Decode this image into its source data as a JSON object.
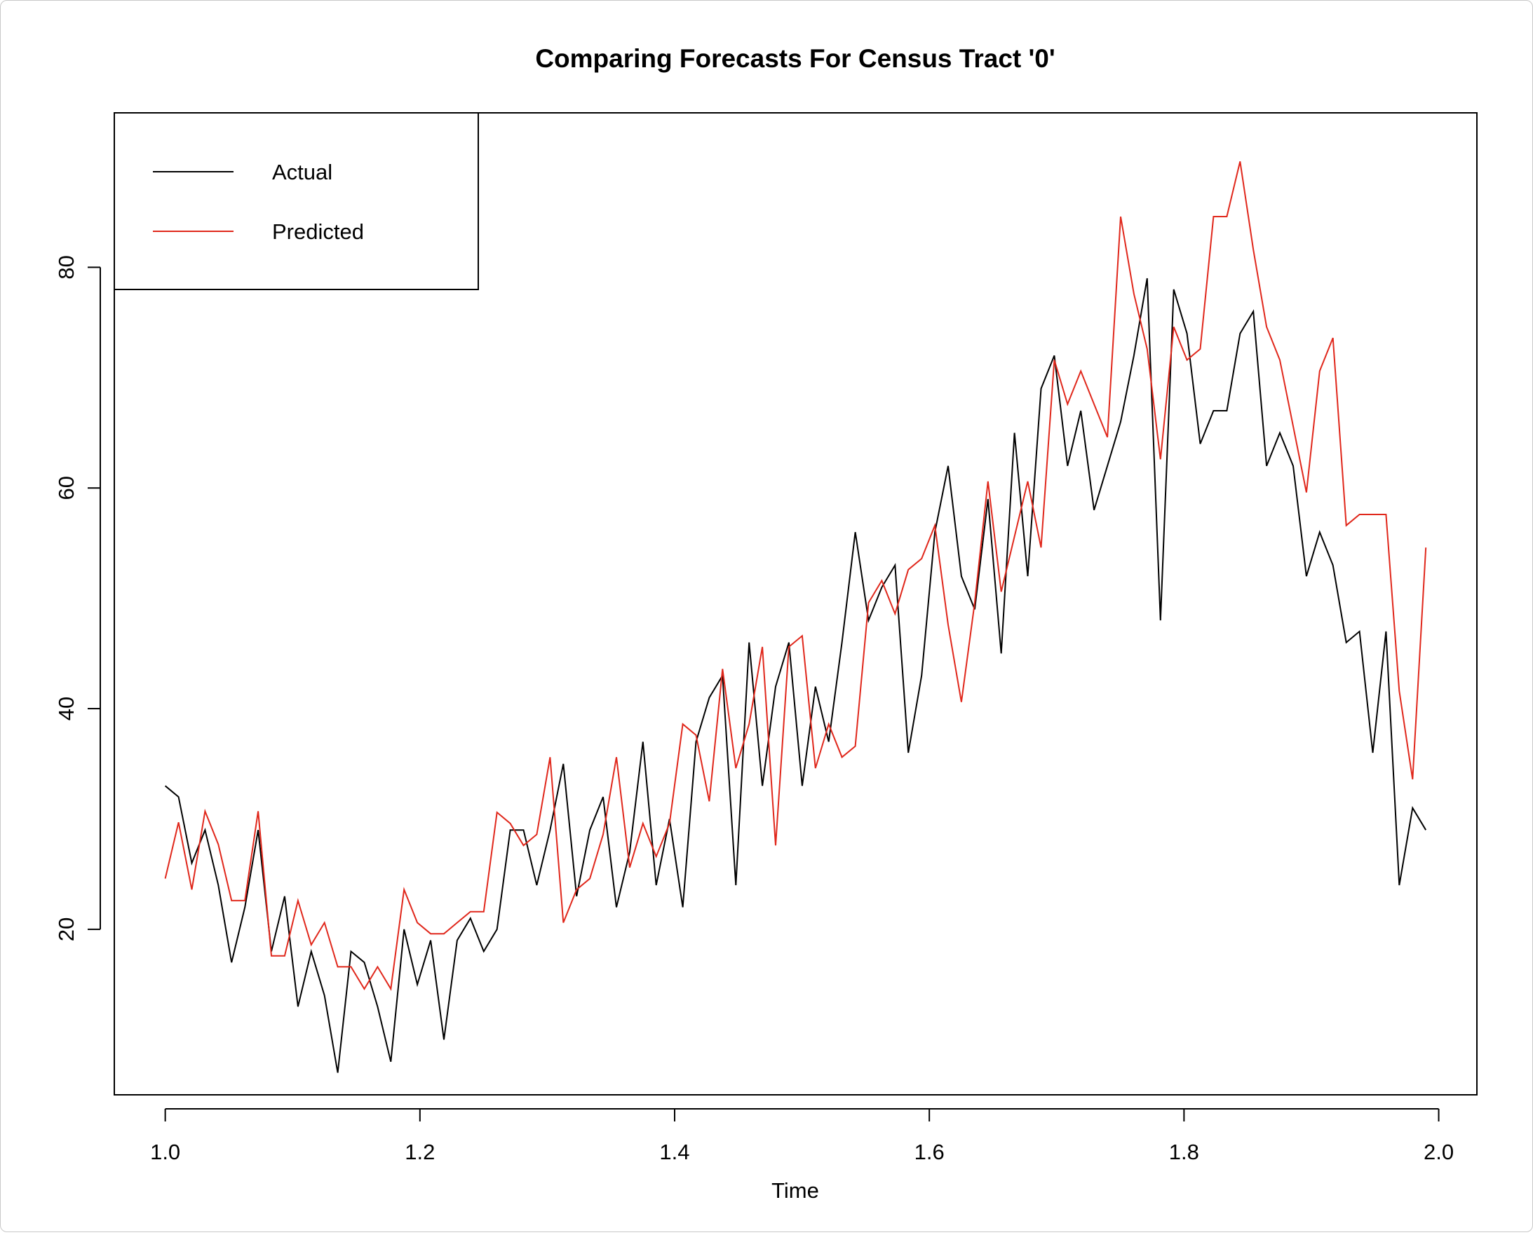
{
  "chart_data": {
    "type": "line",
    "title": "Comparing Forecasts For Census Tract '0'",
    "xlabel": "Time",
    "ylabel": "",
    "xlim": [
      0.96,
      2.03
    ],
    "ylim": [
      5,
      94
    ],
    "xticks": [
      "1.0",
      "1.2",
      "1.4",
      "1.6",
      "1.8",
      "2.0"
    ],
    "yticks": [
      "20",
      "40",
      "60",
      "80"
    ],
    "grid": false,
    "legend_position": "top-left",
    "x_start": 1.0,
    "x_step": 0.01042,
    "series": [
      {
        "name": "Actual",
        "color": "#000000",
        "values": [
          33,
          32,
          26,
          29,
          24,
          17,
          22,
          29,
          18,
          23,
          13,
          18,
          14,
          7,
          18,
          17,
          13,
          8,
          20,
          15,
          19,
          10,
          19,
          21,
          18,
          20,
          29,
          29,
          24,
          29,
          35,
          23,
          29,
          32,
          22,
          27,
          37,
          24,
          30,
          22,
          37,
          41,
          43,
          24,
          46,
          33,
          42,
          46,
          33,
          42,
          37,
          46,
          56,
          48,
          51,
          53,
          36,
          43,
          56,
          62,
          52,
          49,
          59,
          45,
          65,
          52,
          69,
          72,
          62,
          67,
          58,
          62,
          66,
          72,
          79,
          48,
          78,
          74,
          64,
          67,
          67,
          74,
          76,
          62,
          65,
          62,
          52,
          56,
          53,
          46,
          47,
          36,
          47,
          24,
          31,
          29
        ]
      },
      {
        "name": "Predicted",
        "color": "#e0271b",
        "values": [
          24.6,
          29.7,
          23.6,
          30.7,
          27.7,
          22.6,
          22.6,
          30.7,
          17.6,
          17.6,
          22.6,
          18.6,
          20.6,
          16.6,
          16.6,
          14.6,
          16.6,
          14.6,
          23.6,
          20.6,
          19.6,
          19.6,
          20.6,
          21.6,
          21.6,
          30.6,
          29.6,
          27.6,
          28.6,
          35.6,
          20.6,
          23.6,
          24.6,
          28.6,
          35.6,
          25.6,
          29.6,
          26.6,
          29.6,
          38.6,
          37.6,
          31.6,
          43.6,
          34.6,
          38.6,
          45.6,
          27.6,
          45.6,
          46.6,
          34.6,
          38.6,
          35.6,
          36.6,
          49.6,
          51.6,
          48.6,
          52.6,
          53.6,
          56.6,
          47.6,
          40.6,
          49.6,
          60.6,
          50.6,
          55.6,
          60.6,
          54.6,
          71.6,
          67.6,
          70.6,
          67.6,
          64.6,
          84.6,
          77.6,
          72.6,
          62.6,
          74.6,
          71.6,
          72.6,
          84.6,
          84.6,
          89.6,
          81.6,
          74.6,
          71.6,
          65.6,
          59.6,
          70.6,
          73.6,
          56.6,
          57.6,
          57.6,
          57.6,
          41.6,
          33.6,
          54.6
        ]
      }
    ]
  }
}
